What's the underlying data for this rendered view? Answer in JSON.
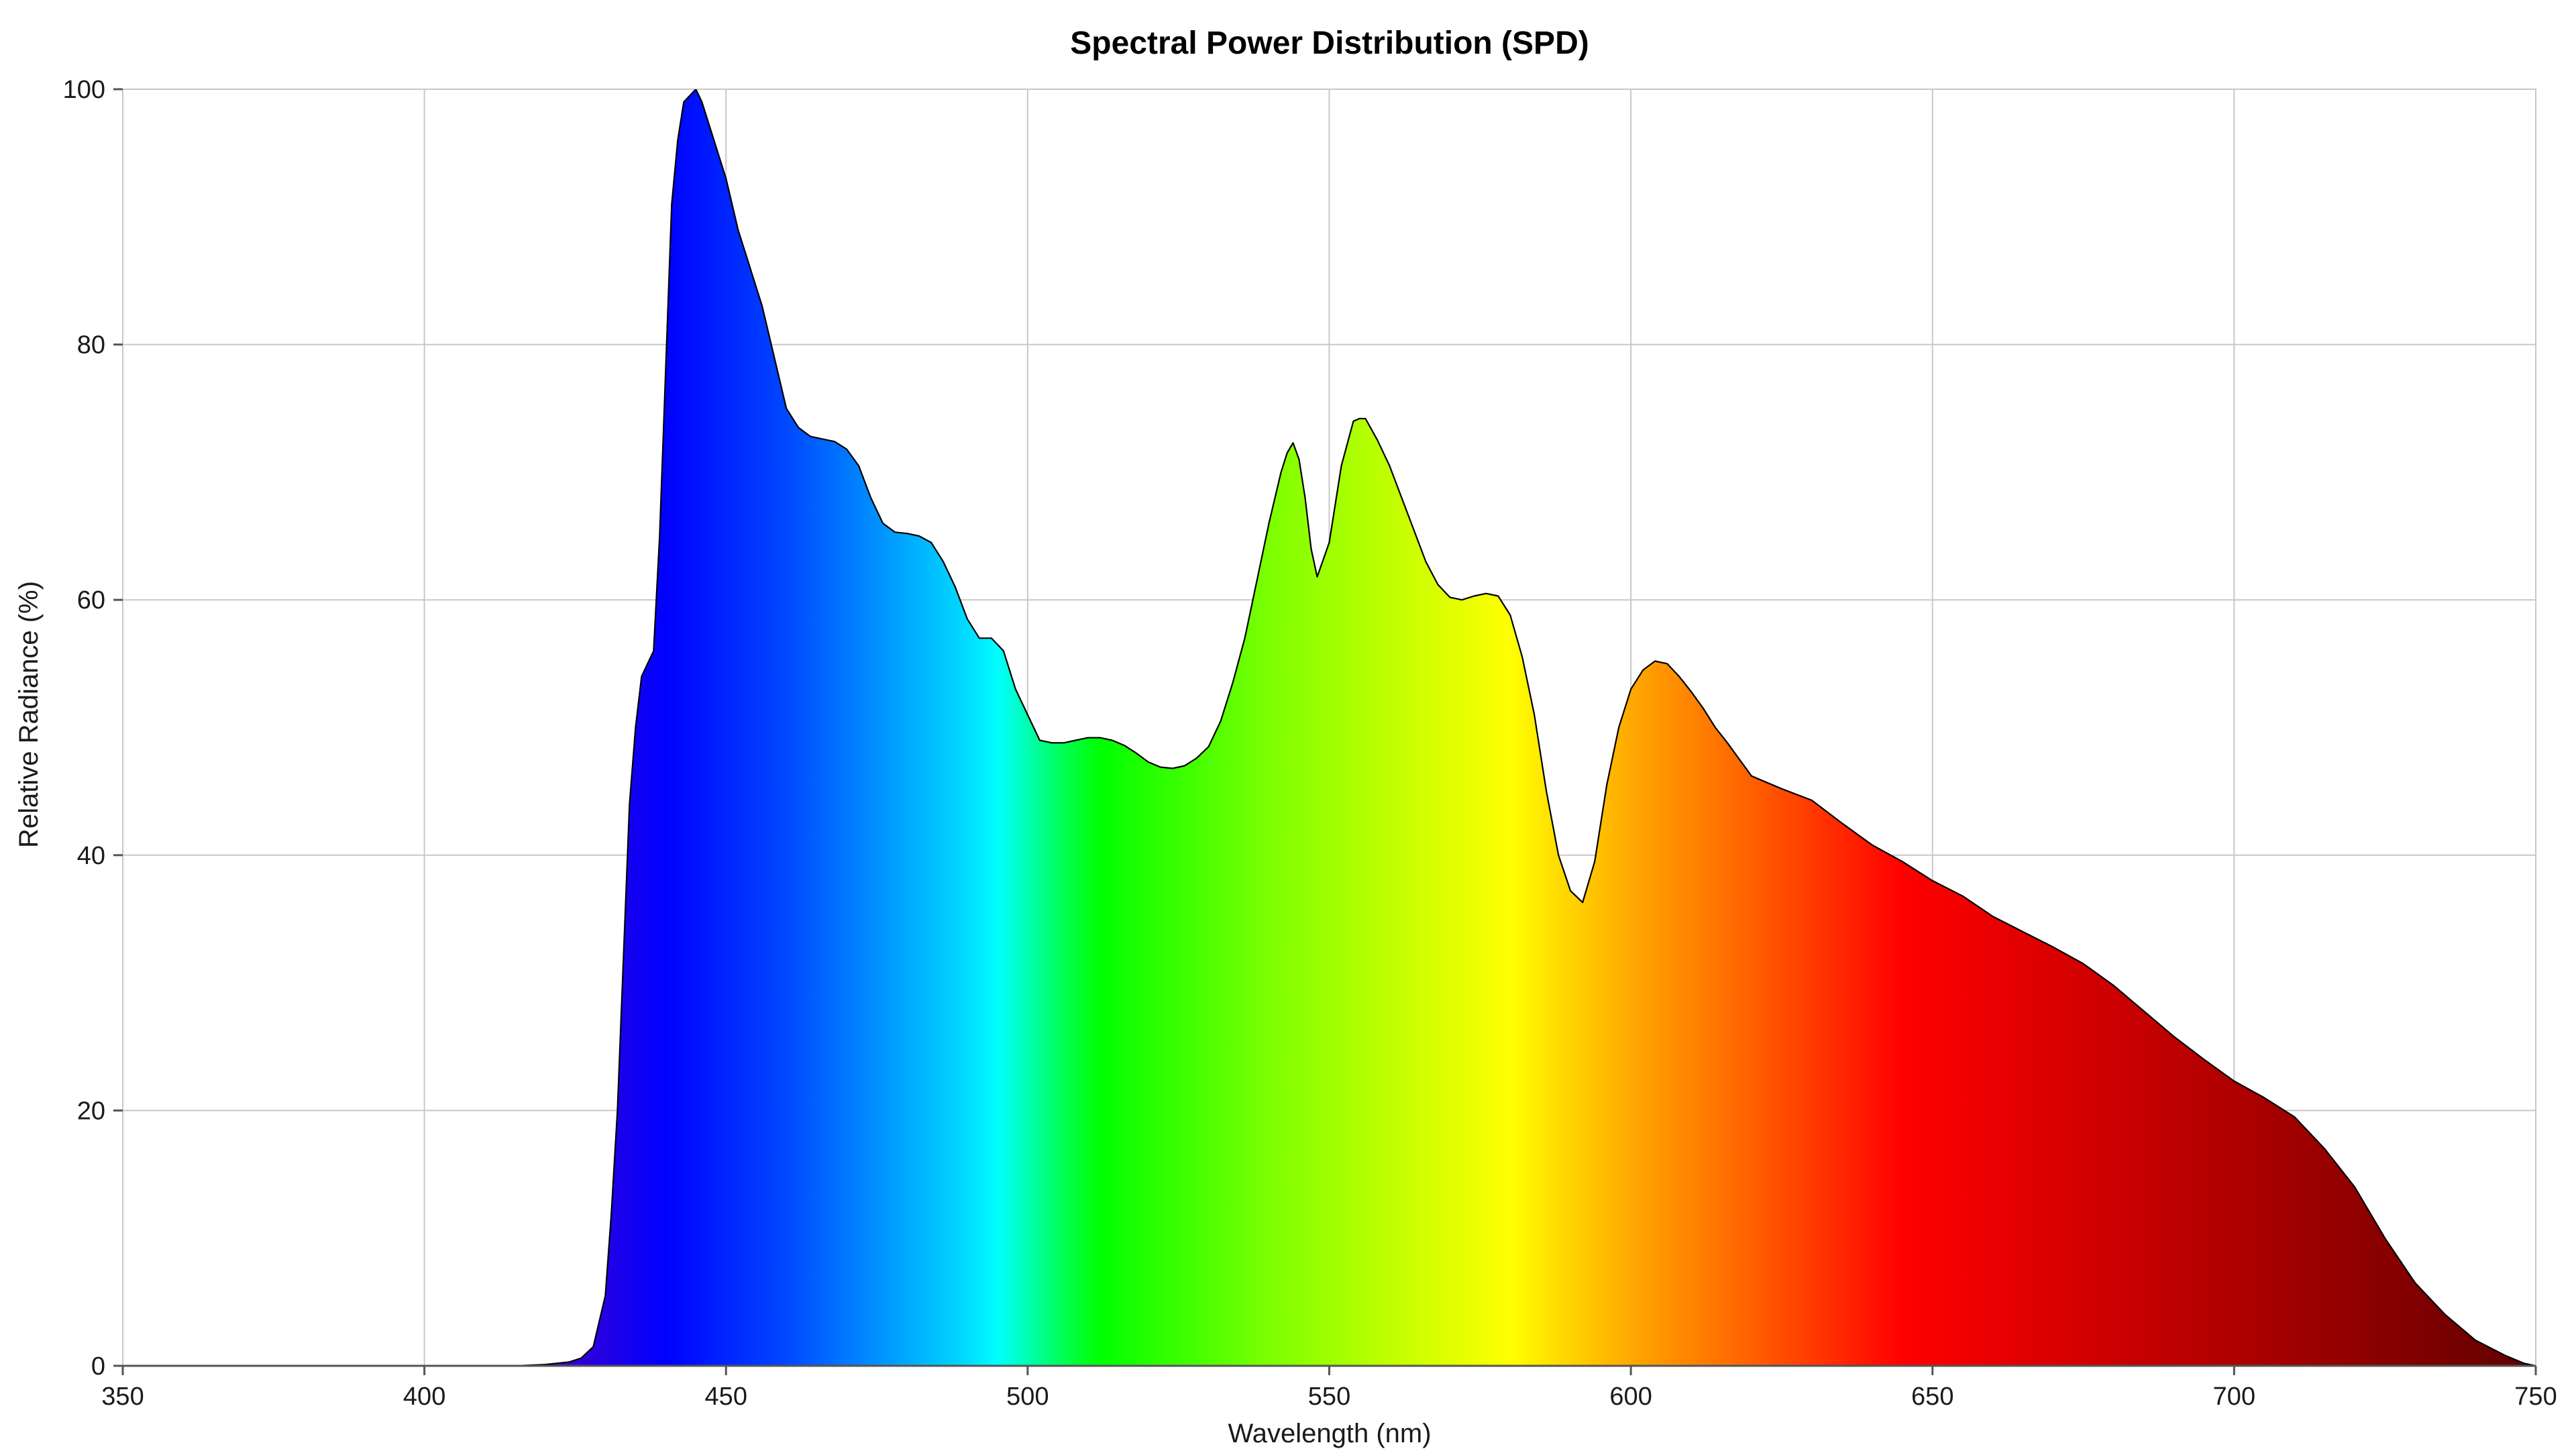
{
  "chart_data": {
    "type": "area",
    "title": "Spectral Power Distribution (SPD)",
    "xlabel": "Wavelength (nm)",
    "ylabel": "Relative Radiance (%)",
    "xlim": [
      350,
      750
    ],
    "ylim": [
      0,
      100
    ],
    "xticks": [
      350,
      400,
      450,
      500,
      550,
      600,
      650,
      700,
      750
    ],
    "yticks": [
      0,
      20,
      40,
      60,
      80,
      100
    ],
    "grid": true,
    "fill": "visible-spectrum-gradient",
    "outline_color": "#000000",
    "series": [
      {
        "x": [
          350,
          360,
          370,
          380,
          390,
          400,
          410,
          415,
          420,
          422,
          424,
          426,
          428,
          430,
          431,
          432,
          433,
          434,
          435,
          436,
          437,
          438,
          439,
          440,
          441,
          442,
          443,
          444,
          445,
          446,
          448,
          450,
          452,
          454,
          456,
          458,
          460,
          462,
          464,
          466,
          468,
          470,
          472,
          474,
          476,
          478,
          480,
          482,
          484,
          486,
          488,
          490,
          492,
          494,
          496,
          498,
          500,
          502,
          504,
          506,
          508,
          510,
          512,
          514,
          516,
          518,
          520,
          522,
          524,
          526,
          528,
          530,
          532,
          534,
          536,
          538,
          540,
          542,
          543,
          544,
          545,
          546,
          547,
          548,
          550,
          552,
          554,
          555,
          556,
          558,
          560,
          562,
          564,
          566,
          568,
          570,
          572,
          574,
          576,
          578,
          580,
          582,
          584,
          586,
          588,
          590,
          592,
          594,
          596,
          598,
          600,
          602,
          604,
          606,
          608,
          610,
          612,
          614,
          616,
          618,
          620,
          625,
          630,
          635,
          640,
          645,
          650,
          655,
          660,
          665,
          670,
          675,
          680,
          685,
          690,
          695,
          700,
          705,
          710,
          715,
          720,
          725,
          730,
          735,
          740,
          745,
          748,
          750
        ],
        "y": [
          0,
          0,
          0,
          0,
          0,
          0,
          0,
          0,
          0.1,
          0.2,
          0.3,
          0.6,
          1.5,
          5.5,
          12,
          20,
          32,
          44,
          50,
          54,
          55,
          56,
          65,
          78,
          91,
          96,
          99,
          99.5,
          100,
          99,
          96,
          93,
          89,
          86,
          83,
          79,
          75,
          73.5,
          72.8,
          72.6,
          72.4,
          71.8,
          70.5,
          68,
          66,
          65.3,
          65.2,
          65,
          64.5,
          63,
          61,
          58.5,
          57,
          57,
          56,
          53,
          51,
          49,
          48.8,
          48.8,
          49,
          49.2,
          49.2,
          49,
          48.6,
          48,
          47.3,
          46.9,
          46.8,
          47,
          47.6,
          48.5,
          50.5,
          53.5,
          57,
          61.5,
          66,
          70,
          71.5,
          72.3,
          71,
          68,
          64,
          61.8,
          64.5,
          70.5,
          74,
          74.2,
          74.2,
          72.5,
          70.5,
          68,
          65.5,
          63,
          61.2,
          60.2,
          60,
          60.3,
          60.5,
          60.3,
          58.8,
          55.5,
          51,
          45,
          40,
          37.2,
          36.3,
          39.5,
          45.5,
          50,
          53,
          54.5,
          55.2,
          55,
          54,
          52.8,
          51.5,
          50,
          48.8,
          47.5,
          46.2,
          45.2,
          44.3,
          42.5,
          40.8,
          39.5,
          38,
          36.8,
          35.2,
          34,
          32.8,
          31.5,
          29.8,
          27.8,
          25.8,
          24,
          22.3,
          21,
          19.5,
          17,
          14,
          10,
          6.5,
          4,
          2,
          0.8,
          0.2,
          0
        ]
      }
    ]
  }
}
